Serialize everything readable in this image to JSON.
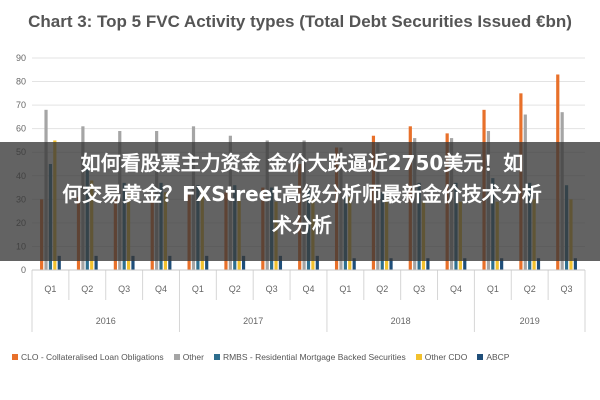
{
  "chart_data": {
    "type": "bar",
    "title": "Chart 3: Top 5 FVC Activity types (Total Debt Securities Issued €bn)",
    "xlabel": "",
    "ylabel": "",
    "ylim": [
      0,
      90
    ],
    "yticks": [
      0,
      10,
      20,
      30,
      40,
      50,
      60,
      70,
      80,
      90
    ],
    "grid": true,
    "legend_position": "bottom",
    "categories": [
      "Q1",
      "Q2",
      "Q3",
      "Q4",
      "Q1",
      "Q2",
      "Q3",
      "Q4",
      "Q1",
      "Q2",
      "Q3",
      "Q4",
      "Q1",
      "Q2",
      "Q3"
    ],
    "year_groups": [
      {
        "label": "2016",
        "span": 4
      },
      {
        "label": "2017",
        "span": 4
      },
      {
        "label": "2018",
        "span": 4
      },
      {
        "label": "2019",
        "span": 3
      }
    ],
    "series": [
      {
        "name": "CLO - Collateralised Loan Obligations",
        "color": "#E8702A",
        "values": [
          30,
          31,
          30,
          33,
          32,
          33,
          35,
          45,
          52,
          57,
          61,
          58,
          68,
          75,
          83
        ]
      },
      {
        "name": "Other",
        "color": "#A5A5A5",
        "values": [
          68,
          61,
          59,
          59,
          61,
          57,
          55,
          55,
          52,
          54,
          56,
          56,
          59,
          66,
          67
        ]
      },
      {
        "name": "RMBS - Residential Mortgage Backed Securities",
        "color": "#2D6E8E",
        "values": [
          45,
          45,
          37,
          37,
          36,
          36,
          35,
          34,
          33,
          33,
          37,
          37,
          39,
          37,
          36
        ]
      },
      {
        "name": "Other CDO",
        "color": "#F2C12E",
        "values": [
          55,
          38,
          33,
          33,
          34,
          31,
          29,
          30,
          31,
          31,
          29,
          29,
          29,
          30,
          30
        ]
      },
      {
        "name": "ABCP",
        "color": "#1F4E79",
        "values": [
          6,
          6,
          6,
          6,
          6,
          6,
          6,
          6,
          5,
          5,
          5,
          5,
          5,
          5,
          5
        ]
      }
    ]
  },
  "overlay": {
    "line1": "如何看股票主力资金 金价大跌逼近2750美元！如",
    "line2": "何交易黄金？FXStreet高级分析师最新金价技术分析",
    "line3": "术分析"
  }
}
